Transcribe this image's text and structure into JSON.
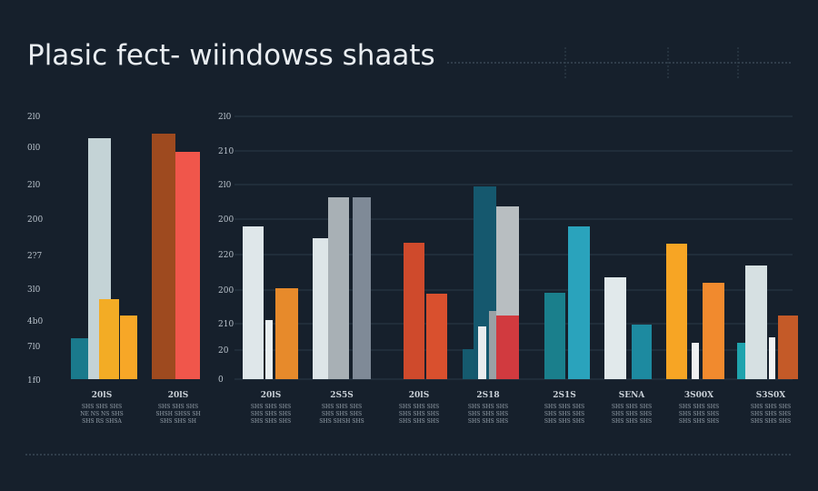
{
  "chart_data": {
    "type": "bar",
    "title": "Plasic fect- wiindowss shaats",
    "left_axis_ticks": [
      "1f0",
      "7l0",
      "4b0",
      "3l0",
      "2?7",
      "200",
      "2l0",
      "0l0",
      "2l0"
    ],
    "right_axis_ticks": [
      "0",
      "20",
      "210",
      "200",
      "220",
      "200",
      "2l0",
      "210",
      "2l0"
    ],
    "groups": [
      {
        "label": "20lS",
        "sub": [
          "SHS SHS SHS",
          "NE NS NS SHS",
          "SHS RS SHSA"
        ],
        "bars": [
          {
            "value": 45,
            "color": "#1a7a8c"
          },
          {
            "value": 265,
            "color": "#c4d3d6"
          },
          {
            "value": 88,
            "color": "#f3ac25"
          },
          {
            "value": 70,
            "color": "#f7a727"
          }
        ]
      },
      {
        "label": "20lS",
        "sub": [
          "SHS SHS SHS",
          "SHSH SHSS SH",
          "SHS SHS SH"
        ],
        "bars": [
          {
            "value": 270,
            "color": "#9e4a1f"
          },
          {
            "value": 250,
            "color": "#f0564b"
          }
        ]
      },
      {
        "label": "20lS",
        "sub": [
          "SHS SHS SHS",
          "SHS SHS SHS",
          "SHS SHS SHS"
        ],
        "bars": [
          {
            "value": 168,
            "color": "#dfe7ea"
          },
          {
            "value": 65,
            "color": "#e8eef0"
          },
          {
            "value": 100,
            "color": "#e78a2b"
          }
        ]
      },
      {
        "label": "2S5S",
        "sub": [
          "SHS SHS SHS",
          "SHS SHS SHS",
          "SHS SHSH SHS"
        ],
        "bars": [
          {
            "value": 155,
            "color": "#dde5e8"
          },
          {
            "value": 166,
            "color": "#f4f6f7"
          },
          {
            "value": 200,
            "color": "#a8b0b5"
          },
          {
            "value": 200,
            "color": "#7f8a97"
          }
        ]
      },
      {
        "label": "20lS",
        "sub": [
          "SHS SHS SHS",
          "SHS SHS SHS",
          "SHS SHS SHS"
        ],
        "bars": [
          {
            "value": 53,
            "color": "#6b7780"
          },
          {
            "value": 70,
            "color": "#e8eaeb"
          },
          {
            "value": 150,
            "color": "#cf4a2c"
          },
          {
            "value": 94,
            "color": "#d9502e"
          }
        ]
      },
      {
        "label": "2S18",
        "sub": [
          "SHS SHS SHS",
          "SHS SHS SHS",
          "SHS SHS SHS"
        ],
        "bars": [
          {
            "value": 33,
            "color": "#155a6e"
          },
          {
            "value": 212,
            "color": "#15586e"
          },
          {
            "value": 58,
            "color": "#e9ecee"
          },
          {
            "value": 75,
            "color": "#9aa1a5"
          },
          {
            "value": 190,
            "color": "#b8bec1"
          },
          {
            "value": 70,
            "color": "#d13a3f"
          }
        ]
      },
      {
        "label": "2S1S",
        "sub": [
          "SHS SHS SHS",
          "SHS SHS SHS",
          "SHS SHS SHS"
        ],
        "bars": [
          {
            "value": 95,
            "color": "#1a7f8c"
          },
          {
            "value": 168,
            "color": "#2aa3bc"
          }
        ]
      },
      {
        "label": "SENA",
        "sub": [
          "SHS SHS SHS",
          "SHS SHS SHS",
          "SHS SHS SHS"
        ],
        "bars": [
          {
            "value": 112,
            "color": "#e1e9eb"
          },
          {
            "value": 60,
            "color": "#1d8aa0"
          }
        ]
      },
      {
        "label": "3S00X",
        "sub": [
          "SHS SHS SHS",
          "SHS SHS SHS",
          "SHS SHS SHS"
        ],
        "bars": [
          {
            "value": 149,
            "color": "#f7a524"
          },
          {
            "value": 40,
            "color": "#eef0f1"
          },
          {
            "value": 106,
            "color": "#f18a2e"
          }
        ]
      },
      {
        "label": "S3S0X",
        "sub": [
          "SHS SHS SHS",
          "SHS SHS SHS",
          "SHS SHS SHS"
        ],
        "bars": [
          {
            "value": 40,
            "color": "#1fa3ad"
          },
          {
            "value": 125,
            "color": "#d6e0e2"
          },
          {
            "value": 46,
            "color": "#f2f3f4"
          },
          {
            "value": 70,
            "color": "#c45a28"
          }
        ]
      }
    ],
    "colors": {
      "background": "#16202c",
      "grid": "#2a3a48"
    }
  }
}
